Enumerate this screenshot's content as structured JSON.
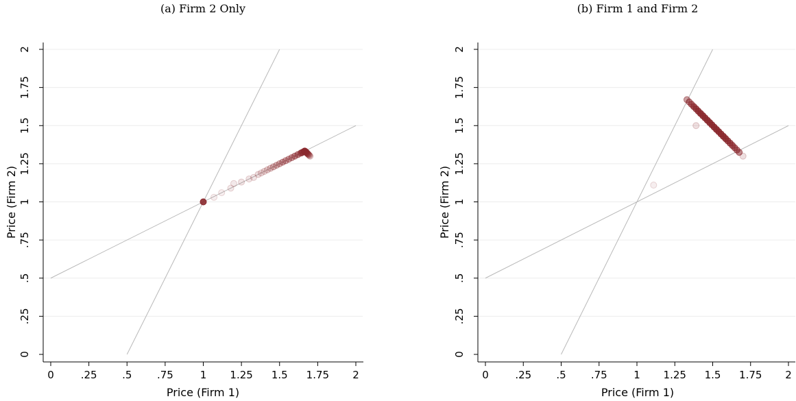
{
  "chart_data": [
    {
      "type": "scatter",
      "title": "(a) Firm 2 Only",
      "xlabel": "Price (Firm 1)",
      "ylabel": "Price (Firm 2)",
      "xlim": [
        0,
        2
      ],
      "ylim": [
        0,
        2
      ],
      "x_ticks": [
        "0",
        ".25",
        ".5",
        ".75",
        "1",
        "1.25",
        "1.5",
        "1.75",
        "2"
      ],
      "y_ticks": [
        "0",
        ".25",
        ".5",
        ".75",
        "1",
        "1.25",
        "1.5",
        "1.75",
        "2"
      ],
      "grid": "horizontal",
      "reference_lines": [
        {
          "points": [
            [
              0,
              0.5
            ],
            [
              2,
              1.5
            ]
          ]
        },
        {
          "points": [
            [
              0.5,
              0
            ],
            [
              1.5,
              2
            ]
          ]
        }
      ],
      "marker_color": "#8b2a2f",
      "points": [
        {
          "x": 1.0,
          "y": 1.0,
          "opacity": 0.9
        },
        {
          "x": 1.07,
          "y": 1.03,
          "opacity": 0.08
        },
        {
          "x": 1.12,
          "y": 1.06,
          "opacity": 0.08
        },
        {
          "x": 1.18,
          "y": 1.09,
          "opacity": 0.1
        },
        {
          "x": 1.2,
          "y": 1.12,
          "opacity": 0.1
        },
        {
          "x": 1.25,
          "y": 1.13,
          "opacity": 0.12
        },
        {
          "x": 1.3,
          "y": 1.15,
          "opacity": 0.12
        },
        {
          "x": 1.33,
          "y": 1.16,
          "opacity": 0.12
        },
        {
          "x": 1.36,
          "y": 1.18,
          "opacity": 0.15
        },
        {
          "x": 1.38,
          "y": 1.19,
          "opacity": 0.15
        },
        {
          "x": 1.4,
          "y": 1.2,
          "opacity": 0.18
        },
        {
          "x": 1.42,
          "y": 1.21,
          "opacity": 0.2
        },
        {
          "x": 1.44,
          "y": 1.22,
          "opacity": 0.25
        },
        {
          "x": 1.46,
          "y": 1.23,
          "opacity": 0.3
        },
        {
          "x": 1.48,
          "y": 1.24,
          "opacity": 0.32
        },
        {
          "x": 1.5,
          "y": 1.25,
          "opacity": 0.35
        },
        {
          "x": 1.52,
          "y": 1.26,
          "opacity": 0.4
        },
        {
          "x": 1.54,
          "y": 1.27,
          "opacity": 0.4
        },
        {
          "x": 1.56,
          "y": 1.28,
          "opacity": 0.4
        },
        {
          "x": 1.58,
          "y": 1.29,
          "opacity": 0.45
        },
        {
          "x": 1.6,
          "y": 1.3,
          "opacity": 0.5
        },
        {
          "x": 1.62,
          "y": 1.31,
          "opacity": 0.55
        },
        {
          "x": 1.64,
          "y": 1.32,
          "opacity": 0.65
        },
        {
          "x": 1.65,
          "y": 1.325,
          "opacity": 0.75
        },
        {
          "x": 1.66,
          "y": 1.33,
          "opacity": 0.85
        },
        {
          "x": 1.665,
          "y": 1.333,
          "opacity": 0.9
        },
        {
          "x": 1.67,
          "y": 1.33,
          "opacity": 0.9
        },
        {
          "x": 1.675,
          "y": 1.325,
          "opacity": 0.75
        },
        {
          "x": 1.68,
          "y": 1.32,
          "opacity": 0.55
        },
        {
          "x": 1.685,
          "y": 1.315,
          "opacity": 0.45
        },
        {
          "x": 1.69,
          "y": 1.31,
          "opacity": 0.35
        },
        {
          "x": 1.695,
          "y": 1.305,
          "opacity": 0.25
        },
        {
          "x": 1.7,
          "y": 1.3,
          "opacity": 0.2
        }
      ]
    },
    {
      "type": "scatter",
      "title": "(b) Firm 1 and Firm 2",
      "xlabel": "Price (Firm 1)",
      "ylabel": "Price (Firm 2)",
      "xlim": [
        0,
        2
      ],
      "ylim": [
        0,
        2
      ],
      "x_ticks": [
        "0",
        ".25",
        ".5",
        ".75",
        "1",
        "1.25",
        "1.5",
        "1.75",
        "2"
      ],
      "y_ticks": [
        "0",
        ".25",
        ".5",
        ".75",
        "1",
        "1.25",
        "1.5",
        "1.75",
        "2"
      ],
      "grid": "horizontal",
      "reference_lines": [
        {
          "points": [
            [
              0,
              0.5
            ],
            [
              2,
              1.5
            ]
          ]
        },
        {
          "points": [
            [
              0.5,
              0
            ],
            [
              1.5,
              2
            ]
          ]
        }
      ],
      "marker_color": "#8b2a2f",
      "points": [
        {
          "x": 1.11,
          "y": 1.11,
          "opacity": 0.08
        },
        {
          "x": 1.39,
          "y": 1.5,
          "opacity": 0.15
        },
        {
          "x": 1.7,
          "y": 1.3,
          "opacity": 0.15
        },
        {
          "x": 1.33,
          "y": 1.67,
          "opacity": 0.45
        },
        {
          "x": 1.345,
          "y": 1.655,
          "opacity": 0.55
        },
        {
          "x": 1.36,
          "y": 1.64,
          "opacity": 0.65
        },
        {
          "x": 1.375,
          "y": 1.625,
          "opacity": 0.75
        },
        {
          "x": 1.39,
          "y": 1.61,
          "opacity": 0.8
        },
        {
          "x": 1.405,
          "y": 1.595,
          "opacity": 0.85
        },
        {
          "x": 1.42,
          "y": 1.58,
          "opacity": 0.9
        },
        {
          "x": 1.435,
          "y": 1.565,
          "opacity": 0.9
        },
        {
          "x": 1.45,
          "y": 1.55,
          "opacity": 0.9
        },
        {
          "x": 1.465,
          "y": 1.535,
          "opacity": 0.9
        },
        {
          "x": 1.48,
          "y": 1.52,
          "opacity": 0.9
        },
        {
          "x": 1.495,
          "y": 1.505,
          "opacity": 0.9
        },
        {
          "x": 1.51,
          "y": 1.49,
          "opacity": 0.9
        },
        {
          "x": 1.525,
          "y": 1.475,
          "opacity": 0.9
        },
        {
          "x": 1.54,
          "y": 1.46,
          "opacity": 0.9
        },
        {
          "x": 1.555,
          "y": 1.445,
          "opacity": 0.9
        },
        {
          "x": 1.57,
          "y": 1.43,
          "opacity": 0.9
        },
        {
          "x": 1.585,
          "y": 1.415,
          "opacity": 0.85
        },
        {
          "x": 1.6,
          "y": 1.4,
          "opacity": 0.8
        },
        {
          "x": 1.615,
          "y": 1.385,
          "opacity": 0.75
        },
        {
          "x": 1.63,
          "y": 1.37,
          "opacity": 0.7
        },
        {
          "x": 1.645,
          "y": 1.355,
          "opacity": 0.65
        },
        {
          "x": 1.66,
          "y": 1.34,
          "opacity": 0.6
        },
        {
          "x": 1.675,
          "y": 1.325,
          "opacity": 0.55
        }
      ]
    }
  ]
}
